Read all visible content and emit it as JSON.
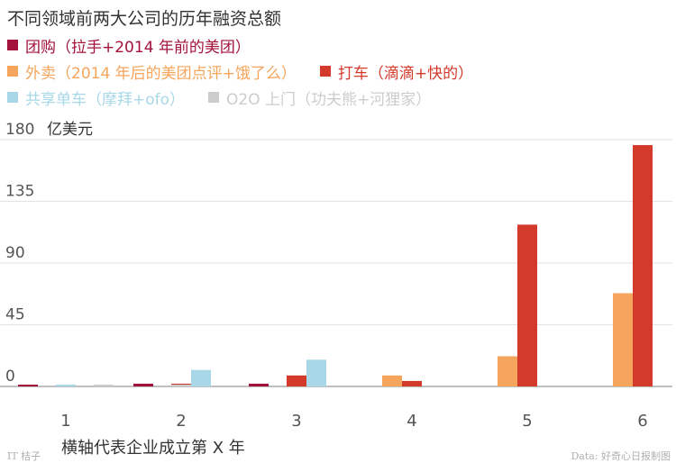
{
  "chart_data": {
    "type": "bar",
    "title": "不同领域前两大公司的历年融资总额",
    "ylabel": "亿美元",
    "xlabel": "横轴代表企业成立第 X 年",
    "categories": [
      "1",
      "2",
      "3",
      "4",
      "5",
      "6"
    ],
    "ylim": [
      0,
      180
    ],
    "yticks": [
      0,
      45,
      90,
      135,
      180
    ],
    "grid": true,
    "legend_position": "top-left",
    "series": [
      {
        "name": "团购（拉手+2014 年前的美团）",
        "color": "#a3123a",
        "values": [
          1.0,
          2.0,
          2.0,
          null,
          null,
          null
        ]
      },
      {
        "name": "外卖（2014 年后的美团点评+饿了么）",
        "color": "#f5a55c",
        "values": [
          null,
          null,
          null,
          8.0,
          22.0,
          68.0
        ]
      },
      {
        "name": "打车（滴滴+快的）",
        "color": "#d33a2c",
        "values": [
          null,
          2.0,
          8.0,
          4.0,
          118.0,
          176.0
        ]
      },
      {
        "name": "共享单车（摩拜+ofo）",
        "color": "#a8d8e8",
        "values": [
          0.5,
          12.0,
          19.5,
          null,
          null,
          null
        ]
      },
      {
        "name": "O2O 上门（功夫熊+河狸家）",
        "color": "#cccccc",
        "values": [
          0.3,
          0.5,
          null,
          null,
          null,
          null
        ]
      }
    ]
  },
  "legend_rows": [
    [
      0
    ],
    [
      1,
      2
    ],
    [
      3,
      4
    ]
  ],
  "footer": {
    "source_left": "IT 桔子",
    "source_right": "Data: 好奇心日报制图"
  }
}
